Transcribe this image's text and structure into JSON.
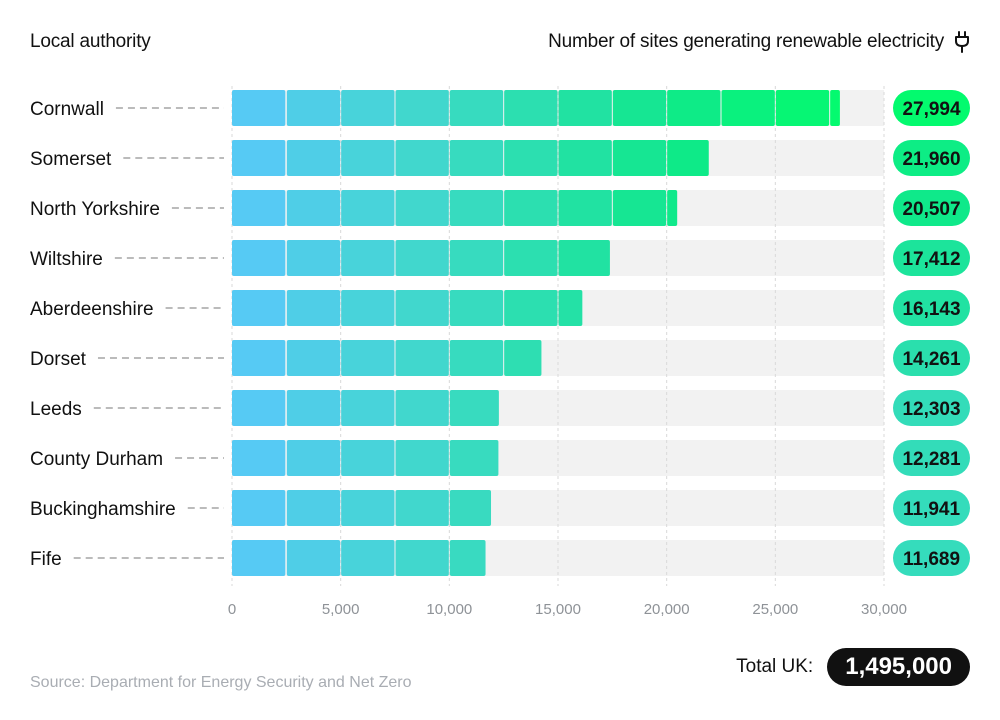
{
  "header": {
    "left_title": "Local authority",
    "right_title": "Number of sites generating renewable electricity",
    "right_icon": "plug-icon"
  },
  "chart_data": {
    "type": "bar",
    "orientation": "horizontal",
    "title": "Number of sites generating renewable electricity",
    "xlabel": "",
    "ylabel": "Local authority",
    "xlim": [
      0,
      30000
    ],
    "tick_values": [
      0,
      5000,
      10000,
      15000,
      20000,
      25000,
      30000
    ],
    "tick_labels": [
      "0",
      "5,000",
      "10,000",
      "15,000",
      "20,000",
      "25,000",
      "30,000"
    ],
    "grid": true,
    "categories": [
      "Cornwall",
      "Somerset",
      "North Yorkshire",
      "Wiltshire",
      "Aberdeenshire",
      "Dorset",
      "Leeds",
      "County Durham",
      "Buckinghamshire",
      "Fife"
    ],
    "values": [
      27994,
      21960,
      20507,
      17412,
      16143,
      14261,
      12303,
      12281,
      11941,
      11689
    ],
    "value_labels": [
      "27,994",
      "21,960",
      "20,507",
      "17,412",
      "16,143",
      "14,261",
      "12,303",
      "12,281",
      "11,941",
      "11,689"
    ],
    "segment_size": 2500,
    "gradient_colors": [
      "#5ac8fa",
      "#3dd9c6",
      "#10e88c",
      "#00ff66"
    ]
  },
  "footer": {
    "source": "Source: Department for Energy Security and Net Zero",
    "total_label": "Total UK:",
    "total_value": "1,495,000"
  }
}
